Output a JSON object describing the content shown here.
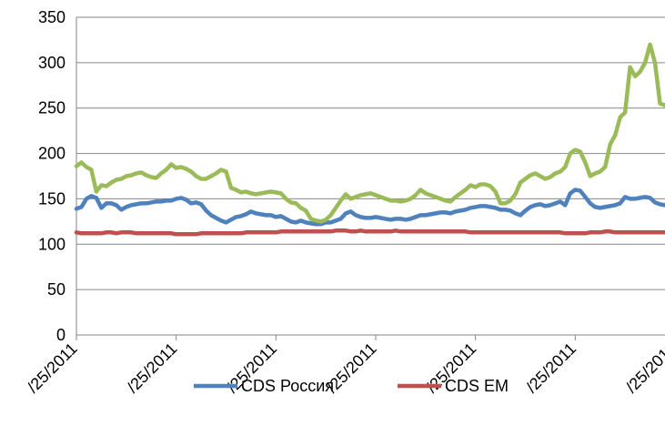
{
  "chart_data": {
    "type": "line",
    "title": "",
    "xlabel": "",
    "ylabel": "",
    "ylim": [
      0,
      350
    ],
    "yticks": [
      0,
      50,
      100,
      150,
      200,
      250,
      300,
      350
    ],
    "grid": "horizontal",
    "legend_placement": "bottom",
    "x_tick_labels": [
      "/25/2011",
      "/25/2011",
      "/25/2011",
      "/25/2011",
      "/25/2011",
      "/25/2011",
      "/25/2011"
    ],
    "x": [
      0,
      1,
      2,
      3,
      4,
      5,
      6,
      7,
      8,
      9,
      10,
      11,
      12,
      13,
      14,
      15,
      16,
      17,
      18,
      19,
      20,
      21,
      22,
      23,
      24,
      25,
      26,
      27,
      28,
      29,
      30,
      31,
      32,
      33,
      34,
      35,
      36,
      37,
      38,
      39,
      40,
      41,
      42,
      43,
      44,
      45,
      46,
      47,
      48,
      49,
      50,
      51,
      52,
      53,
      54,
      55,
      56,
      57,
      58,
      59,
      60,
      61,
      62,
      63,
      64,
      65,
      66,
      67,
      68,
      69,
      70,
      71,
      72,
      73,
      74,
      75,
      76,
      77,
      78,
      79,
      80,
      81,
      82,
      83,
      84,
      85,
      86,
      87,
      88,
      89,
      90,
      91,
      92,
      93,
      94,
      95,
      96,
      97,
      98,
      99,
      100,
      101,
      102,
      103,
      104,
      105,
      106,
      107,
      108,
      109,
      110,
      111,
      112,
      113,
      114,
      115,
      116,
      117,
      118
    ],
    "series": [
      {
        "name": "CDS Россия",
        "color": "#4F81BD",
        "values": [
          139,
          141,
          150,
          153,
          151,
          140,
          145,
          145,
          143,
          138,
          141,
          143,
          144,
          145,
          145,
          146,
          147,
          147,
          148,
          148,
          150,
          151,
          149,
          145,
          146,
          144,
          137,
          132,
          129,
          126,
          124,
          127,
          130,
          131,
          133,
          136,
          134,
          133,
          132,
          132,
          130,
          131,
          128,
          125,
          124,
          126,
          124,
          123,
          122,
          122,
          124,
          124,
          126,
          128,
          134,
          136,
          132,
          130,
          129,
          129,
          130,
          129,
          128,
          127,
          128,
          128,
          127,
          128,
          130,
          132,
          132,
          133,
          134,
          135,
          135,
          134,
          136,
          137,
          138,
          140,
          141,
          142,
          142,
          141,
          140,
          138,
          138,
          137,
          134,
          132,
          137,
          141,
          143,
          144,
          142,
          143,
          145,
          147,
          143,
          156,
          160,
          159,
          152,
          145,
          141,
          140,
          141,
          142,
          143,
          145,
          152,
          150,
          150,
          151,
          152,
          151,
          146,
          144,
          143
        ]
      },
      {
        "name": "CDS EM",
        "color": "#C0504D",
        "values": [
          113,
          112,
          112,
          112,
          112,
          112,
          113,
          113,
          112,
          113,
          113,
          113,
          112,
          112,
          112,
          112,
          112,
          112,
          112,
          112,
          111,
          111,
          111,
          111,
          111,
          112,
          112,
          112,
          112,
          112,
          112,
          112,
          112,
          112,
          113,
          113,
          113,
          113,
          113,
          113,
          113,
          114,
          114,
          114,
          114,
          114,
          114,
          114,
          114,
          114,
          114,
          114,
          115,
          115,
          115,
          114,
          114,
          115,
          114,
          114,
          114,
          114,
          114,
          114,
          115,
          114,
          114,
          114,
          114,
          114,
          114,
          114,
          114,
          114,
          114,
          114,
          114,
          114,
          114,
          113,
          113,
          113,
          113,
          113,
          113,
          113,
          113,
          113,
          113,
          113,
          113,
          113,
          113,
          113,
          113,
          113,
          113,
          113,
          112,
          112,
          112,
          112,
          112,
          113,
          113,
          113,
          114,
          114,
          113,
          113,
          113,
          113,
          113,
          113,
          113,
          113,
          113,
          113,
          113
        ]
      },
      {
        "name": "",
        "color": "#9BBB59",
        "values": [
          186,
          190,
          185,
          182,
          158,
          165,
          164,
          168,
          171,
          172,
          175,
          176,
          178,
          179,
          176,
          174,
          173,
          178,
          182,
          188,
          184,
          185,
          183,
          180,
          175,
          172,
          172,
          175,
          178,
          182,
          180,
          162,
          160,
          157,
          158,
          156,
          155,
          156,
          157,
          158,
          157,
          156,
          150,
          146,
          145,
          140,
          137,
          128,
          126,
          125,
          127,
          132,
          140,
          148,
          155,
          150,
          152,
          154,
          155,
          156,
          154,
          152,
          150,
          148,
          148,
          147,
          148,
          150,
          154,
          160,
          156,
          154,
          152,
          150,
          148,
          147,
          152,
          156,
          160,
          165,
          163,
          166,
          166,
          164,
          158,
          145,
          145,
          148,
          155,
          168,
          172,
          176,
          178,
          175,
          172,
          174,
          178,
          180,
          185,
          200,
          204,
          202,
          190,
          175,
          178,
          180,
          185,
          210,
          220,
          240,
          245,
          295,
          285,
          290,
          300,
          320,
          300,
          255,
          253
        ]
      }
    ]
  }
}
